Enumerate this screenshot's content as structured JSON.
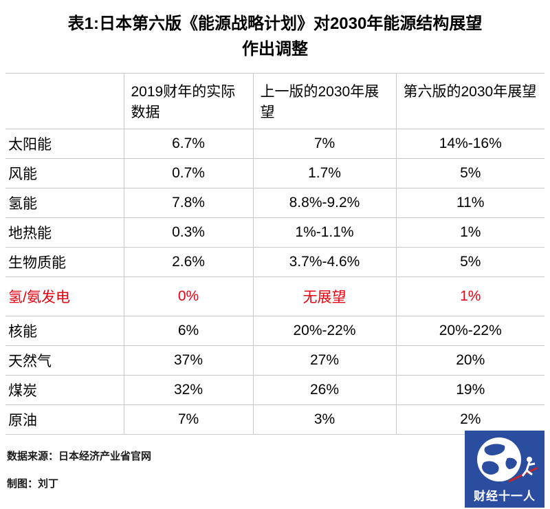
{
  "title": {
    "line1": "表1:日本第六版《能源战略计划》对2030年能源结构展望",
    "line2": "作出调整"
  },
  "chart_data": {
    "type": "table",
    "columns": [
      "",
      "2019财年的实际数据",
      "上一版的2030年展望",
      "第六版的2030年展望"
    ],
    "rows": [
      {
        "label": "太阳能",
        "values": [
          "6.7%",
          "7%",
          "14%-16%"
        ],
        "highlight": false
      },
      {
        "label": "风能",
        "values": [
          "0.7%",
          "1.7%",
          "5%"
        ],
        "highlight": false
      },
      {
        "label": "氢能",
        "values": [
          "7.8%",
          "8.8%-9.2%",
          "11%"
        ],
        "highlight": false
      },
      {
        "label": "地热能",
        "values": [
          "0.3%",
          "1%-1.1%",
          "1%"
        ],
        "highlight": false
      },
      {
        "label": "生物质能",
        "values": [
          "2.6%",
          "3.7%-4.6%",
          "5%"
        ],
        "highlight": false
      },
      {
        "label": "氢/氨发电",
        "values": [
          "0%",
          "无展望",
          "1%"
        ],
        "highlight": true
      },
      {
        "label": "核能",
        "values": [
          "6%",
          "20%-22%",
          "20%-22%"
        ],
        "highlight": false
      },
      {
        "label": "天然气",
        "values": [
          "37%",
          "27%",
          "20%"
        ],
        "highlight": false
      },
      {
        "label": "煤炭",
        "values": [
          "32%",
          "26%",
          "19%"
        ],
        "highlight": false
      },
      {
        "label": "原油",
        "values": [
          "7%",
          "3%",
          "2%"
        ],
        "highlight": false
      }
    ],
    "highlight_color": "#e60012",
    "grid": true,
    "legend": "none"
  },
  "footer": {
    "source": "数据来源：日本经济产业省官网",
    "credit": "制图：刘丁"
  },
  "logo": {
    "text": "财经十一人",
    "bg_color": "#2b4da0"
  }
}
